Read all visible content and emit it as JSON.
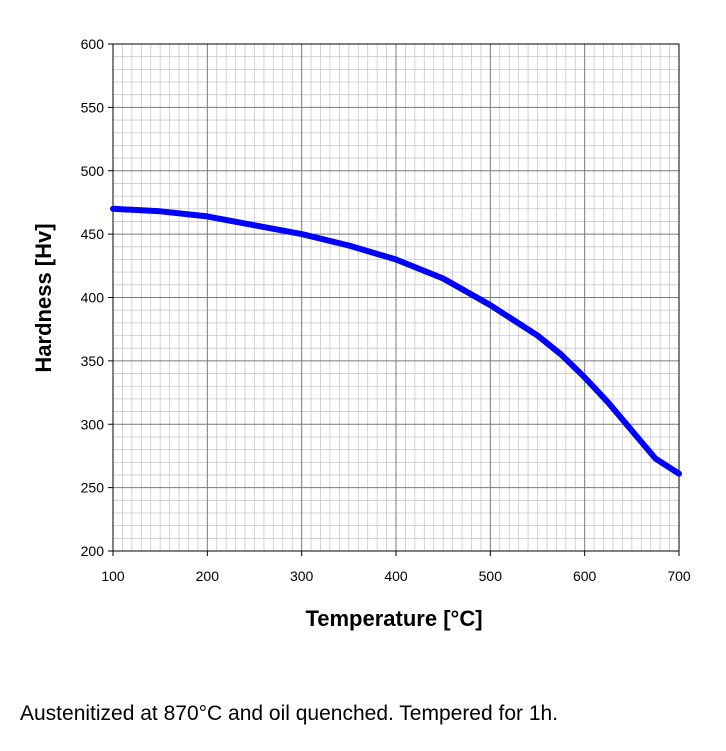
{
  "chart_data": {
    "type": "line",
    "xlabel": "Temperature [°C]",
    "ylabel": "Hardness [Hv]",
    "xlim": [
      100,
      700
    ],
    "ylim": [
      200,
      600
    ],
    "x_ticks": [
      "100",
      "200",
      "300",
      "400",
      "500",
      "600",
      "700"
    ],
    "y_ticks": [
      "200",
      "250",
      "300",
      "350",
      "400",
      "450",
      "500",
      "550",
      "600"
    ],
    "grid": true,
    "legend": "none",
    "series": [
      {
        "color": "#0000ff",
        "x": [
          100,
          150,
          200,
          250,
          300,
          350,
          400,
          450,
          500,
          550,
          575,
          600,
          625,
          650,
          675,
          700
        ],
        "y": [
          470,
          468,
          464,
          457,
          450,
          441,
          430,
          415,
          394,
          370,
          355,
          337,
          317,
          295,
          273,
          261
        ]
      }
    ]
  },
  "caption": "Austenitized at 870°C and oil quenched. Tempered for 1h."
}
